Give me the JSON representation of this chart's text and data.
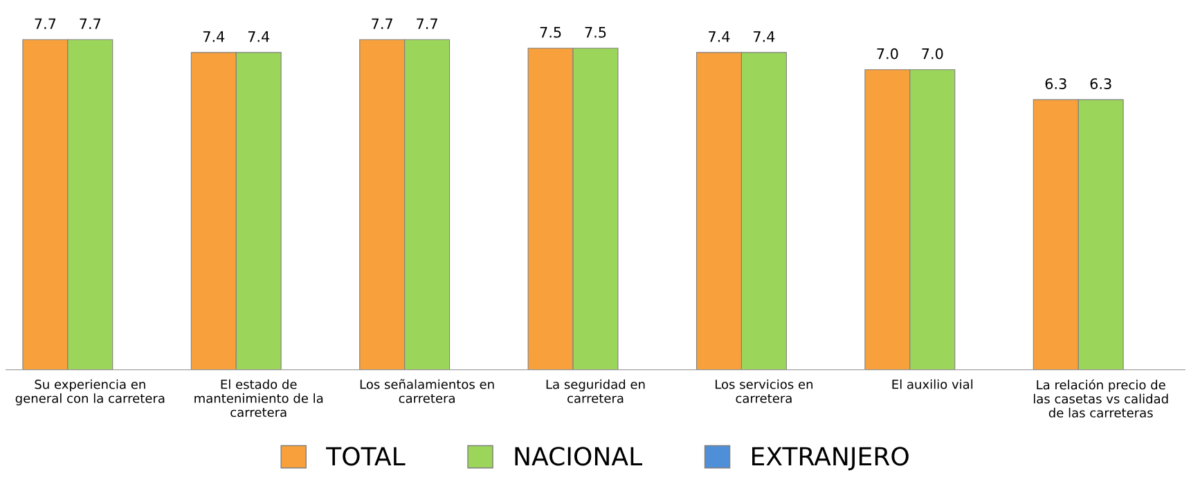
{
  "chart_data": {
    "type": "bar",
    "categories": [
      "Su experiencia en general con la carretera",
      "El estado de mantenimiento de la carretera",
      "Los señalamientos en carretera",
      "La seguridad en carretera",
      "Los servicios en carretera",
      "El auxilio vial",
      "La relación precio de las casetas vs calidad de las carreteras"
    ],
    "series": [
      {
        "name": "TOTAL",
        "color": "#f8a13c",
        "values": [
          7.7,
          7.4,
          7.7,
          7.5,
          7.4,
          7.0,
          6.3
        ],
        "value_labels": [
          "7.7",
          "7.4",
          "7.7",
          "7.5",
          "7.4",
          "7.0",
          "6.3"
        ]
      },
      {
        "name": "NACIONAL",
        "color": "#9bd55a",
        "values": [
          7.7,
          7.4,
          7.7,
          7.5,
          7.4,
          7.0,
          6.3
        ],
        "value_labels": [
          "7.7",
          "7.4",
          "7.7",
          "7.5",
          "7.4",
          "7.0",
          "6.3"
        ]
      },
      {
        "name": "EXTRANJERO",
        "color": "#4f8fd8",
        "values": [
          null,
          null,
          null,
          null,
          null,
          null,
          null
        ]
      }
    ],
    "grid": false,
    "legend": "bottom"
  }
}
